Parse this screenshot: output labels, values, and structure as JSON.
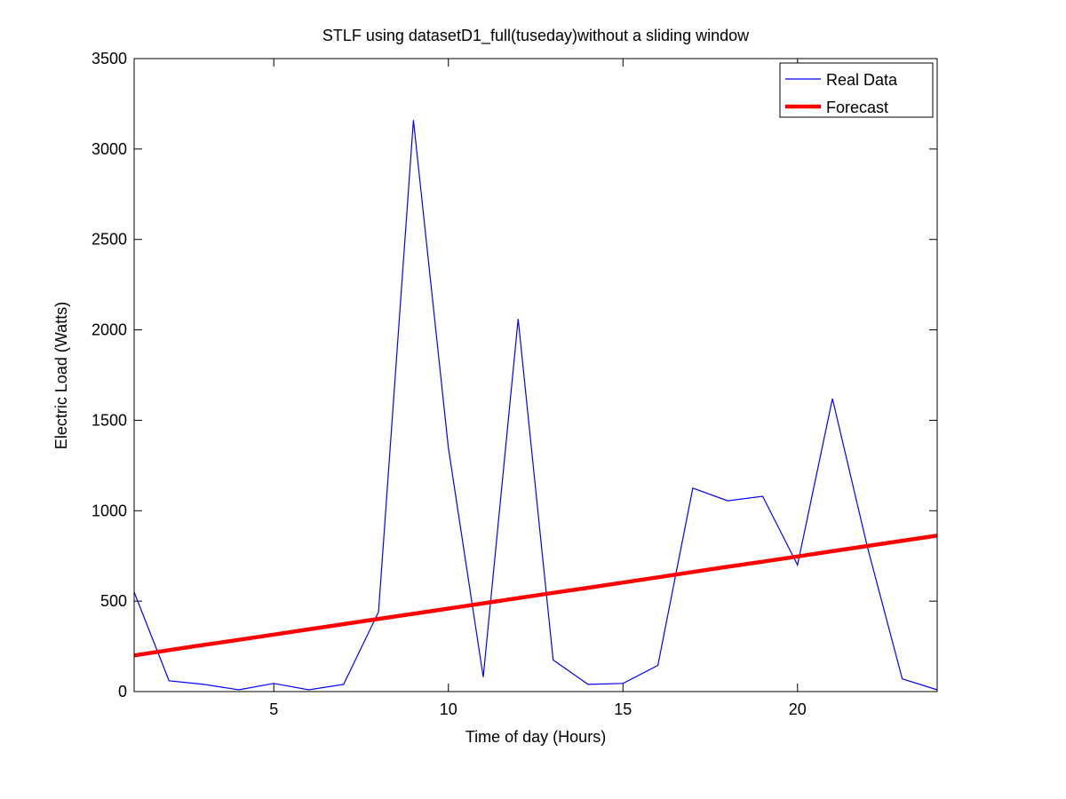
{
  "chart_data": {
    "type": "line",
    "title": "STLF using datasetD1_full(tuseday)without a sliding window",
    "xlabel": "Time of day (Hours)",
    "ylabel": "Electric Load (Watts)",
    "xlim": [
      1,
      24
    ],
    "ylim": [
      0,
      3500
    ],
    "xticks": [
      5,
      10,
      15,
      20
    ],
    "yticks": [
      0,
      500,
      1000,
      1500,
      2000,
      2500,
      3000,
      3500
    ],
    "grid": false,
    "legend_position": "top-right",
    "x": [
      1,
      2,
      3,
      4,
      5,
      6,
      7,
      8,
      9,
      10,
      11,
      12,
      13,
      14,
      15,
      16,
      17,
      18,
      19,
      20,
      21,
      22,
      23,
      24
    ],
    "series": [
      {
        "name": "Real Data",
        "color": "#0000ff",
        "values": [
          550,
          60,
          40,
          10,
          45,
          10,
          40,
          440,
          3160,
          1350,
          80,
          2060,
          175,
          40,
          45,
          145,
          1125,
          1055,
          1080,
          700,
          1620,
          800,
          70,
          10
        ]
      },
      {
        "name": "Forecast",
        "color": "#ff0000",
        "values": [
          200,
          229,
          258,
          286,
          315,
          344,
          373,
          402,
          430,
          459,
          488,
          517,
          546,
          574,
          603,
          632,
          661,
          690,
          718,
          747,
          776,
          805,
          834,
          862
        ]
      }
    ]
  }
}
